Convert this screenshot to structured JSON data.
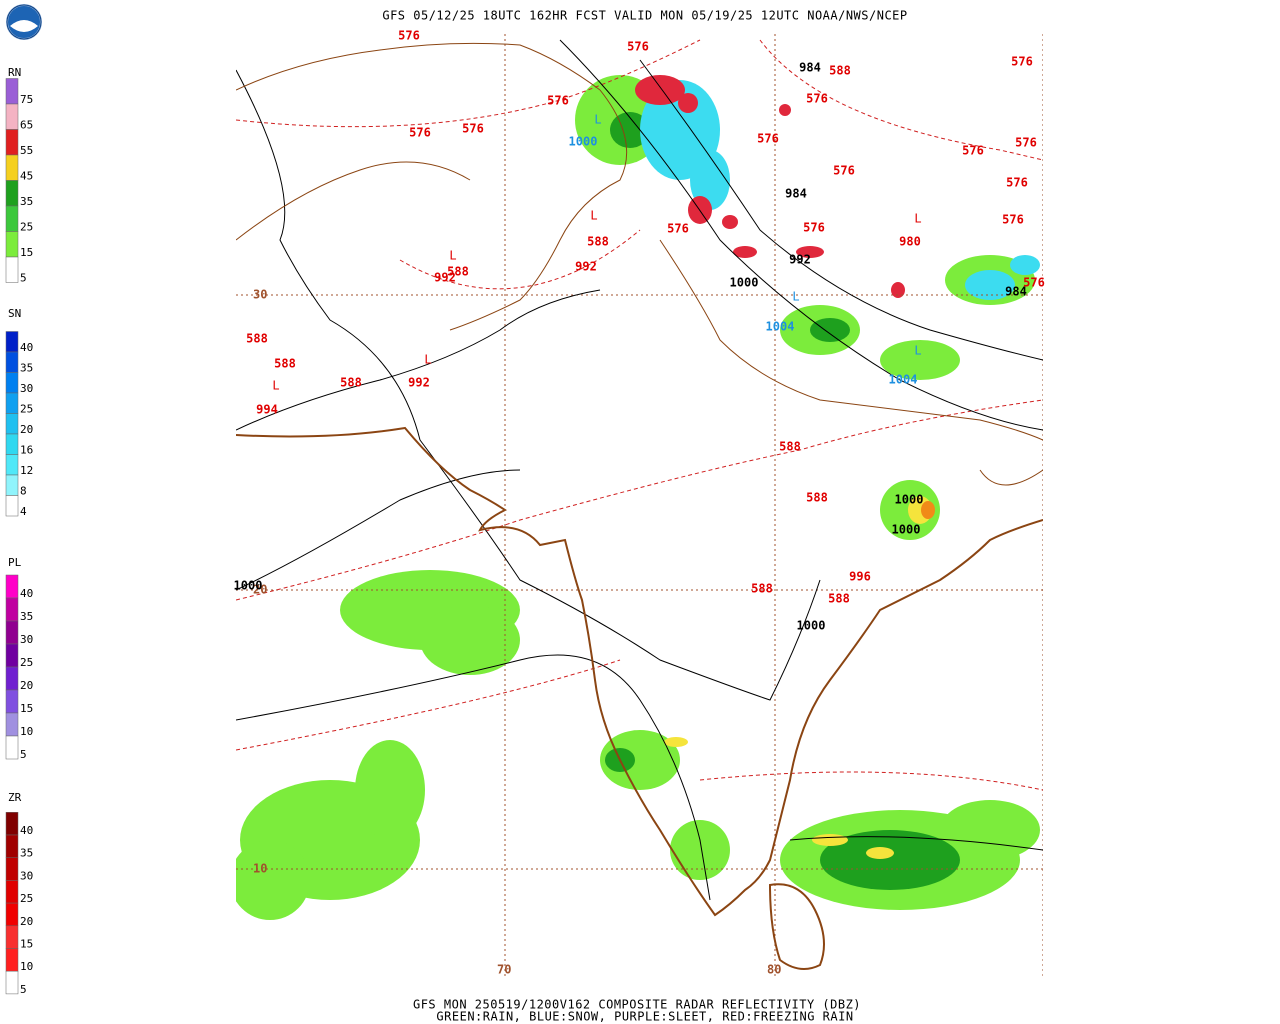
{
  "header": {
    "title": "GFS 05/12/25 18UTC 162HR FCST VALID MON 05/19/25 12UTC NOAA/NWS/NCEP"
  },
  "footer": {
    "line1": "GFS MON 250519/1200V162 COMPOSITE RADAR REFLECTIVITY (DBZ)",
    "line2": "GREEN:RAIN, BLUE:SNOW, PURPLE:SLEET, RED:FREEZING RAIN"
  },
  "legends": [
    {
      "title": "RN",
      "levels": [
        "75",
        "65",
        "55",
        "45",
        "35",
        "25",
        "15",
        "5"
      ]
    },
    {
      "title": "SN",
      "levels": [
        "40",
        "35",
        "30",
        "25",
        "20",
        "16",
        "12",
        "8",
        "4"
      ]
    },
    {
      "title": "PL",
      "levels": [
        "40",
        "35",
        "30",
        "25",
        "20",
        "15",
        "10",
        "5"
      ]
    },
    {
      "title": "ZR",
      "levels": [
        "40",
        "35",
        "30",
        "25",
        "20",
        "15",
        "10",
        "5"
      ]
    }
  ],
  "map": {
    "lat_labels": [
      "30",
      "20",
      "10"
    ],
    "lon_labels": [
      "70",
      "80"
    ],
    "contour_labels": [
      "576",
      "576",
      "576",
      "576",
      "576",
      "1000",
      "984",
      "588",
      "576",
      "576",
      "576",
      "576",
      "576",
      "576",
      "576",
      "576",
      "984",
      "576",
      "980",
      "576",
      "588",
      "992",
      "992",
      "1000",
      "1004",
      "984",
      "576",
      "992",
      "588",
      "588",
      "588",
      "588",
      "992",
      "994",
      "588",
      "588",
      "1000",
      "1000",
      "996",
      "588",
      "588",
      "1000",
      "1000",
      "1004"
    ],
    "low_markers": [
      "L",
      "L",
      "L",
      "L",
      "L",
      "L",
      "L",
      "L"
    ]
  }
}
